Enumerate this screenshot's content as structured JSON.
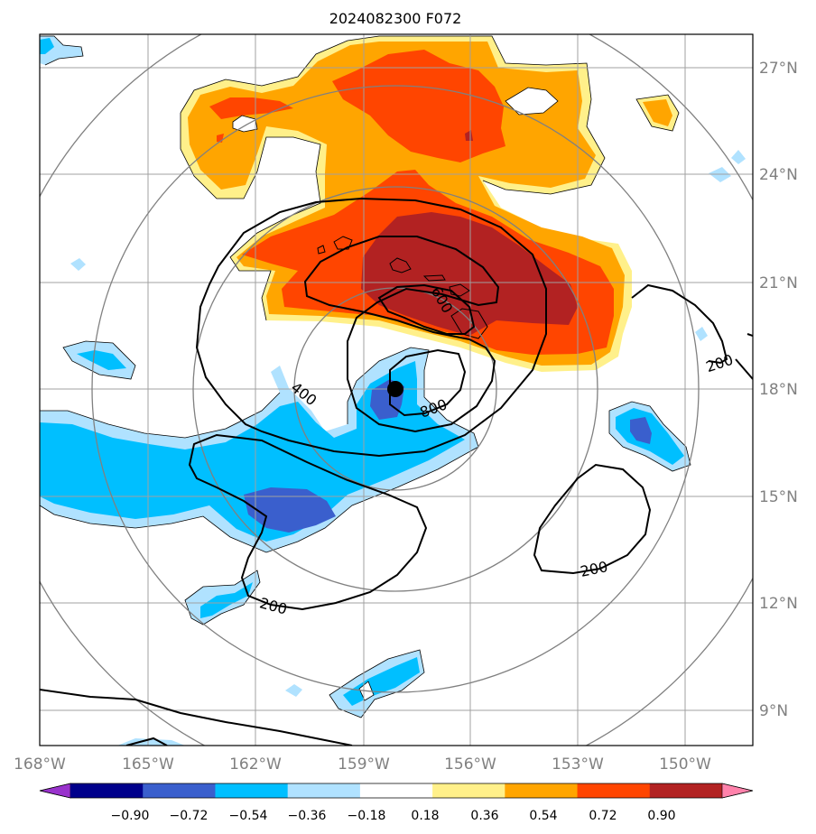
{
  "title": "2024082300 F072",
  "map": {
    "lon_labels": [
      "168°W",
      "165°W",
      "162°W",
      "159°W",
      "156°W",
      "153°W",
      "150°W"
    ],
    "lat_labels": [
      "27°N",
      "24°N",
      "21°N",
      "18°N",
      "15°N",
      "12°N",
      "9°N"
    ],
    "storm_center": {
      "lat": 18.0,
      "lon": -158.2
    },
    "range_rings_color": "#808080",
    "grid_color": "#a0a0a0"
  },
  "contours": {
    "labels": [
      "200",
      "400",
      "600",
      "800",
      "200",
      "200"
    ]
  },
  "colorbar": {
    "ticks": [
      "−0.90",
      "−0.72",
      "−0.54",
      "−0.36",
      "−0.18",
      "0.18",
      "0.36",
      "0.54",
      "0.72",
      "0.90"
    ],
    "colors": [
      "#9932cc",
      "#00008b",
      "#3a5fcd",
      "#00bfff",
      "#b0e2ff",
      "#ffffff",
      "#fff08a",
      "#ffa500",
      "#ff4500",
      "#b22222",
      "#ff82ab"
    ]
  }
}
